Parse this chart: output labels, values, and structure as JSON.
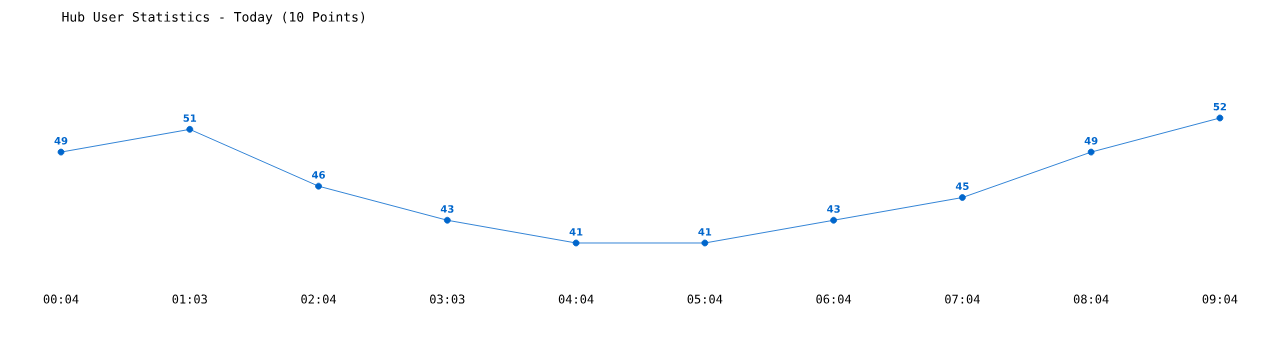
{
  "chart_data": {
    "type": "line",
    "title": "Hub User Statistics - Today (10 Points)",
    "categories": [
      "00:04",
      "01:03",
      "02:04",
      "03:03",
      "04:04",
      "05:04",
      "06:04",
      "07:04",
      "08:04",
      "09:04"
    ],
    "values": [
      49,
      51,
      46,
      43,
      41,
      41,
      43,
      45,
      49,
      52
    ],
    "color": "#0066cc",
    "marker": "circle",
    "line_style": "solid",
    "data_labels": true
  }
}
